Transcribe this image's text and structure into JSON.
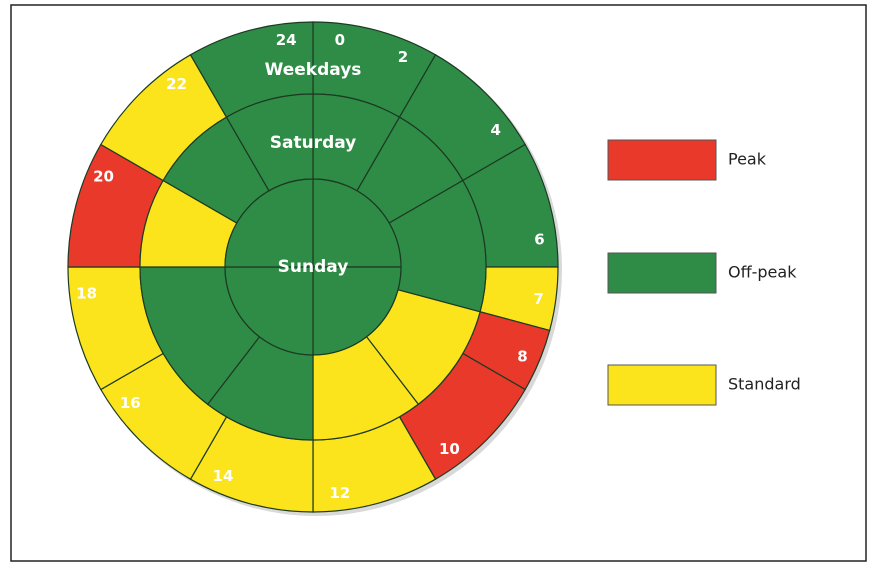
{
  "rings": [
    {
      "label": "Weekdays",
      "segments": [
        {
          "start": 0,
          "end": 2,
          "color": "#2f8c47"
        },
        {
          "start": 2,
          "end": 4,
          "color": "#2f8c47"
        },
        {
          "start": 4,
          "end": 6,
          "color": "#2f8c47"
        },
        {
          "start": 6,
          "end": 7,
          "color": "#fbe41c"
        },
        {
          "start": 7,
          "end": 8,
          "color": "#e8392b"
        },
        {
          "start": 8,
          "end": 10,
          "color": "#e8392b"
        },
        {
          "start": 10,
          "end": 12,
          "color": "#fbe41c"
        },
        {
          "start": 12,
          "end": 14,
          "color": "#fbe41c"
        },
        {
          "start": 14,
          "end": 16,
          "color": "#fbe41c"
        },
        {
          "start": 16,
          "end": 18,
          "color": "#fbe41c"
        },
        {
          "start": 18,
          "end": 20,
          "color": "#e8392b"
        },
        {
          "start": 20,
          "end": 22,
          "color": "#fbe41c"
        },
        {
          "start": 22,
          "end": 24,
          "color": "#2f8c47"
        }
      ]
    },
    {
      "label": "Saturday",
      "segments": [
        {
          "start": 0,
          "end": 2,
          "color": "#2f8c47"
        },
        {
          "start": 2,
          "end": 4,
          "color": "#2f8c47"
        },
        {
          "start": 4,
          "end": 7,
          "color": "#2f8c47"
        },
        {
          "start": 7,
          "end": 9.5,
          "color": "#fbe41c"
        },
        {
          "start": 9.5,
          "end": 12,
          "color": "#fbe41c"
        },
        {
          "start": 12,
          "end": 14.5,
          "color": "#2f8c47"
        },
        {
          "start": 14.5,
          "end": 18,
          "color": "#2f8c47"
        },
        {
          "start": 18,
          "end": 20,
          "color": "#fbe41c"
        },
        {
          "start": 20,
          "end": 22,
          "color": "#2f8c47"
        },
        {
          "start": 22,
          "end": 24,
          "color": "#2f8c47"
        }
      ]
    },
    {
      "label": "Sunday",
      "segments": [
        {
          "start": 0,
          "end": 6,
          "color": "#2f8c47"
        },
        {
          "start": 6,
          "end": 12,
          "color": "#2f8c47"
        },
        {
          "start": 12,
          "end": 18,
          "color": "#2f8c47"
        },
        {
          "start": 18,
          "end": 24,
          "color": "#2f8c47"
        }
      ]
    }
  ],
  "hour_labels": [
    "24",
    "0",
    "2",
    "4",
    "6",
    "7",
    "8",
    "10",
    "12",
    "14",
    "16",
    "18",
    "20",
    "22"
  ],
  "legend": [
    {
      "label": "Peak",
      "color": "#e8392b"
    },
    {
      "label": "Off-peak",
      "color": "#2f8c47"
    },
    {
      "label": "Standard",
      "color": "#fbe41c"
    }
  ]
}
